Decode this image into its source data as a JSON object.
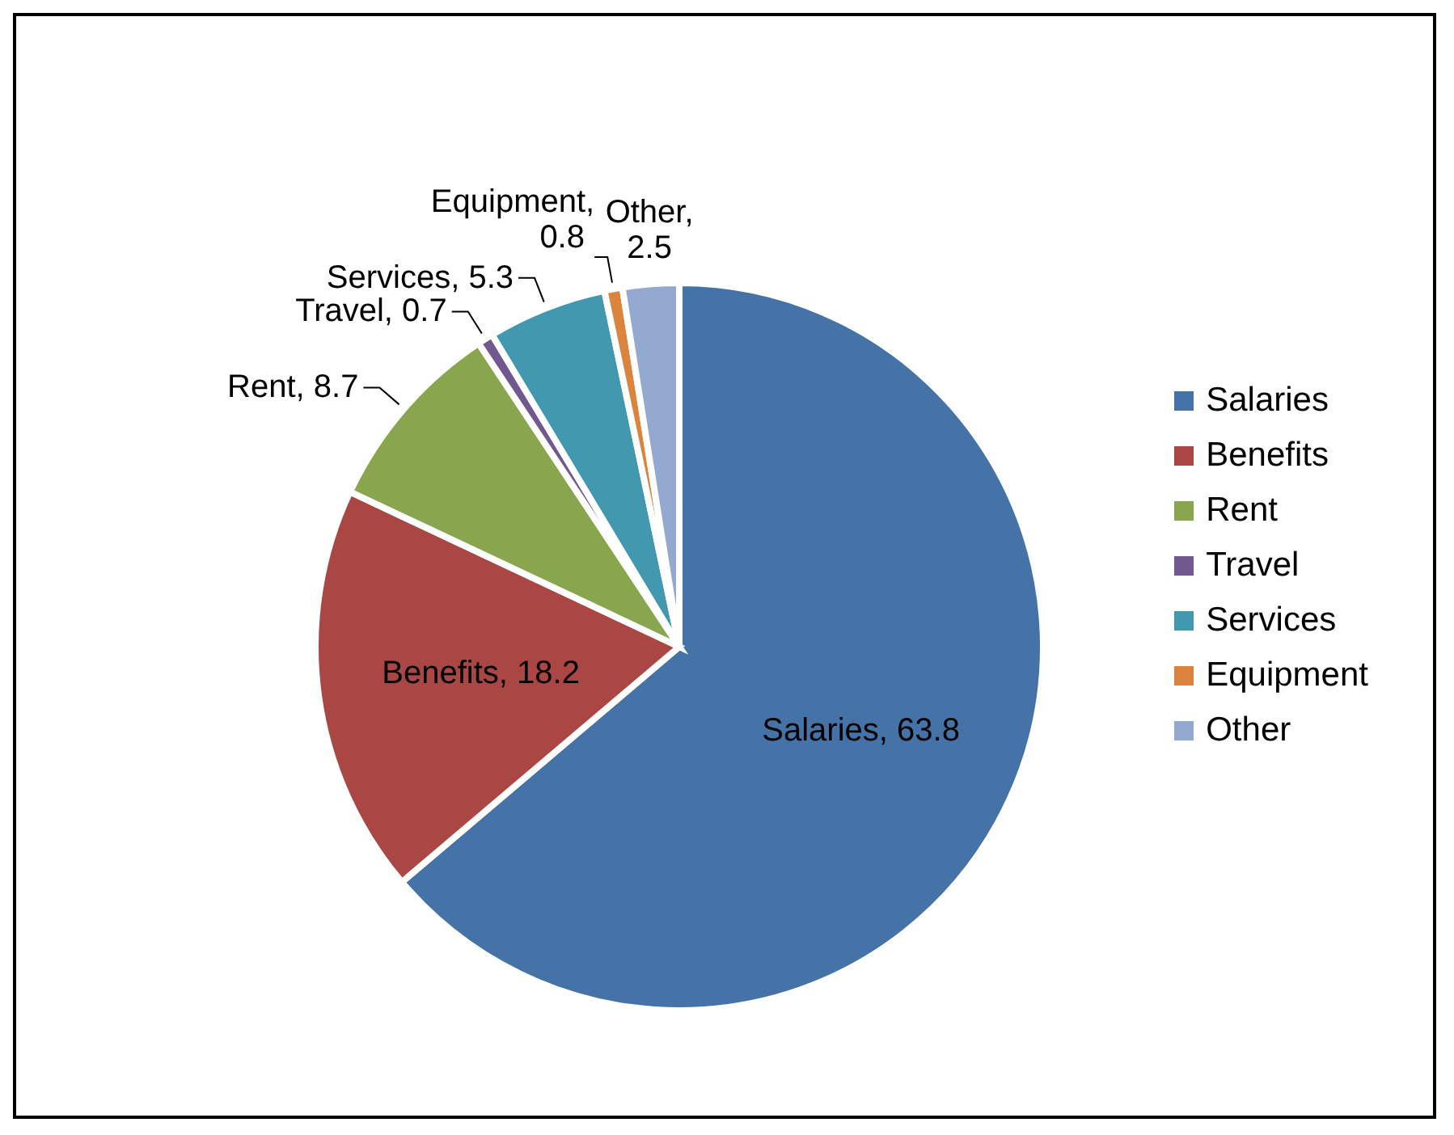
{
  "chart_data": {
    "type": "pie",
    "categories": [
      "Salaries",
      "Benefits",
      "Rent",
      "Travel",
      "Services",
      "Equipment",
      "Other"
    ],
    "values": [
      63.8,
      18.2,
      8.7,
      0.7,
      5.3,
      0.8,
      2.5
    ],
    "value_labels": [
      "Salaries, 63.8",
      "Benefits, 18.2",
      "Rent, 8.7",
      "Travel, 0.7",
      "Services, 5.3",
      "Equipment, 0.8",
      "Other, 2.5"
    ],
    "colors": [
      "#4572a7",
      "#aa4643",
      "#89a54e",
      "#71588f",
      "#4198af",
      "#db843d",
      "#93a9cf"
    ],
    "legend": "right"
  }
}
